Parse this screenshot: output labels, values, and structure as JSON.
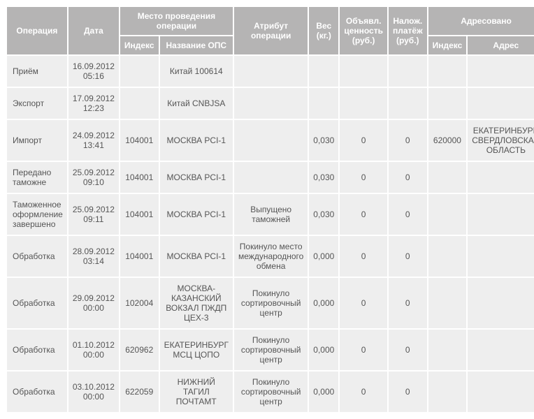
{
  "header": {
    "operation": "Операция",
    "date": "Дата",
    "location_group": "Место проведения операции",
    "index": "Индекс",
    "ops_name": "Название ОПС",
    "attribute": "Атрибут операции",
    "weight": "Вес (кг.)",
    "declared_value": "Объявл. ценность (руб.)",
    "cod": "Налож. платёж (руб.)",
    "addressed_group": "Адресовано",
    "addr_index": "Индекс",
    "addr": "Адрес"
  },
  "rows": [
    {
      "op": "Приём",
      "date": "16.09.2012 05:16",
      "index": "",
      "ops": "Китай 100614",
      "attr": "",
      "weight": "",
      "declared": "",
      "cod": "",
      "addr_idx": "",
      "addr": ""
    },
    {
      "op": "Экспорт",
      "date": "17.09.2012 12:23",
      "index": "",
      "ops": "Китай CNBJSA",
      "attr": "",
      "weight": "",
      "declared": "",
      "cod": "",
      "addr_idx": "",
      "addr": ""
    },
    {
      "op": "Импорт",
      "date": "24.09.2012 13:41",
      "index": "104001",
      "ops": "МОСКВА PCI-1",
      "attr": "",
      "weight": "0,030",
      "declared": "0",
      "cod": "0",
      "addr_idx": "620000",
      "addr": "ЕКАТЕРИНБУРГ, СВЕРДЛОВСКАЯ ОБЛАСТЬ"
    },
    {
      "op": "Передано таможне",
      "date": "25.09.2012 09:10",
      "index": "104001",
      "ops": "МОСКВА PCI-1",
      "attr": "",
      "weight": "0,030",
      "declared": "0",
      "cod": "0",
      "addr_idx": "",
      "addr": ""
    },
    {
      "op": "Таможенное оформление завершено",
      "date": "25.09.2012 09:11",
      "index": "104001",
      "ops": "МОСКВА PCI-1",
      "attr": "Выпущено таможней",
      "weight": "0,030",
      "declared": "0",
      "cod": "0",
      "addr_idx": "",
      "addr": ""
    },
    {
      "op": "Обработка",
      "date": "28.09.2012 03:14",
      "index": "104001",
      "ops": "МОСКВА PCI-1",
      "attr": "Покинуло место международного обмена",
      "weight": "0,000",
      "declared": "0",
      "cod": "0",
      "addr_idx": "",
      "addr": ""
    },
    {
      "op": "Обработка",
      "date": "29.09.2012 00:00",
      "index": "102004",
      "ops": "МОСКВА-КАЗАНСКИЙ ВОКЗАЛ ПЖДП ЦЕХ-3",
      "attr": "Покинуло сортировочный центр",
      "weight": "0,000",
      "declared": "0",
      "cod": "0",
      "addr_idx": "",
      "addr": ""
    },
    {
      "op": "Обработка",
      "date": "01.10.2012 00:00",
      "index": "620962",
      "ops": "ЕКАТЕРИНБУРГ МСЦ ЦОПО",
      "attr": "Покинуло сортировочный центр",
      "weight": "0,000",
      "declared": "0",
      "cod": "0",
      "addr_idx": "",
      "addr": ""
    },
    {
      "op": "Обработка",
      "date": "03.10.2012 00:00",
      "index": "622059",
      "ops": "НИЖНИЙ ТАГИЛ ПОЧТАМТ",
      "attr": "Покинуло сортировочный центр",
      "weight": "0,000",
      "declared": "0",
      "cod": "0",
      "addr_idx": "",
      "addr": ""
    }
  ],
  "col_widths": {
    "op": "86px",
    "date": "76px",
    "index": "54px",
    "ops": "100px",
    "attr": "100px",
    "weight": "40px",
    "declared": "54px",
    "cod": "48px",
    "addr_idx": "54px",
    "addr": "106px"
  }
}
